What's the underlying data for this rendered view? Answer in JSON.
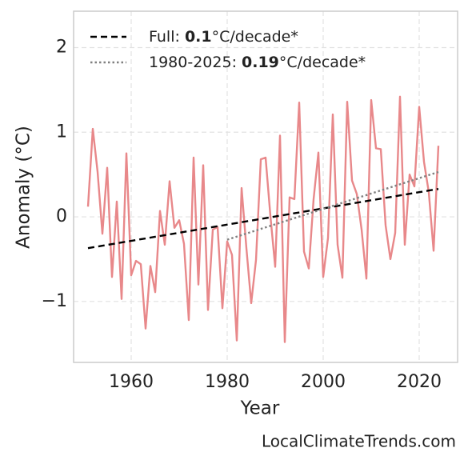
{
  "chart_data": {
    "type": "line",
    "xlabel": "Year",
    "ylabel": "Anomaly (°C)",
    "watermark": "LocalClimateTrends.com",
    "x": [
      1951,
      1952,
      1953,
      1954,
      1955,
      1956,
      1957,
      1958,
      1959,
      1960,
      1961,
      1962,
      1963,
      1964,
      1965,
      1966,
      1967,
      1968,
      1969,
      1970,
      1971,
      1972,
      1973,
      1974,
      1975,
      1976,
      1977,
      1978,
      1979,
      1980,
      1981,
      1982,
      1983,
      1984,
      1985,
      1986,
      1987,
      1988,
      1989,
      1990,
      1991,
      1992,
      1993,
      1994,
      1995,
      1996,
      1997,
      1998,
      1999,
      2000,
      2001,
      2002,
      2003,
      2004,
      2005,
      2006,
      2007,
      2008,
      2009,
      2010,
      2011,
      2012,
      2013,
      2014,
      2015,
      2016,
      2017,
      2018,
      2019,
      2020,
      2021,
      2022,
      2023,
      2024
    ],
    "series": [
      {
        "color": "#e8888a",
        "values": [
          0.12,
          1.04,
          0.53,
          -0.2,
          0.58,
          -0.71,
          0.18,
          -0.97,
          0.75,
          -0.69,
          -0.52,
          -0.56,
          -1.32,
          -0.58,
          -0.89,
          0.07,
          -0.33,
          0.42,
          -0.13,
          -0.04,
          -0.32,
          -1.22,
          0.7,
          -0.8,
          0.61,
          -1.1,
          -0.15,
          -0.12,
          -1.08,
          -0.29,
          -0.45,
          -1.46,
          0.34,
          -0.37,
          -1.02,
          -0.51,
          0.68,
          0.7,
          0.01,
          -0.59,
          0.96,
          -1.48,
          0.23,
          0.21,
          1.35,
          -0.41,
          -0.61,
          0.21,
          0.76,
          -0.71,
          -0.25,
          1.21,
          -0.33,
          -0.72,
          1.36,
          0.43,
          0.27,
          -0.15,
          -0.73,
          1.38,
          0.81,
          0.8,
          -0.1,
          -0.5,
          -0.19,
          1.42,
          -0.33,
          0.5,
          0.36,
          1.3,
          0.65,
          0.29,
          -0.4,
          0.84
        ]
      },
      {
        "name": "Full: ",
        "slope": "0.1",
        "unit": "°C/decade*",
        "color": "#000000",
        "dash": "8 5",
        "x": [
          1951,
          2024
        ],
        "values": [
          -0.37,
          0.33
        ]
      },
      {
        "name": "1980-2025: ",
        "slope": "0.19",
        "unit": "°C/decade*",
        "color": "#808080",
        "dash": "2.5 3",
        "x": [
          1980,
          2024
        ],
        "values": [
          -0.27,
          0.53
        ]
      }
    ],
    "xlim": [
      1948,
      2028
    ],
    "ylim": [
      -1.72,
      2.43
    ],
    "xticks": [
      1960,
      1980,
      2000,
      2020
    ],
    "yticks": [
      {
        "value": -1,
        "label": "−1"
      },
      0,
      1,
      2
    ],
    "grid": true
  }
}
